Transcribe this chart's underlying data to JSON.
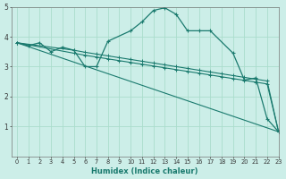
{
  "xlabel": "Humidex (Indice chaleur)",
  "background_color": "#cceee8",
  "line_color": "#1a7a6e",
  "grid_color": "#aaddcc",
  "xlim": [
    -0.5,
    23
  ],
  "ylim": [
    0,
    5
  ],
  "xticks": [
    0,
    1,
    2,
    3,
    4,
    5,
    6,
    7,
    8,
    9,
    10,
    11,
    12,
    13,
    14,
    15,
    16,
    17,
    18,
    19,
    20,
    21,
    22,
    23
  ],
  "yticks": [
    1,
    2,
    3,
    4,
    5
  ],
  "series_peak": {
    "x": [
      0,
      1,
      2,
      3,
      4,
      5,
      6,
      7,
      8,
      10,
      11,
      12,
      13,
      14,
      15,
      16,
      17,
      19,
      20,
      21,
      22,
      23
    ],
    "y": [
      3.8,
      3.7,
      3.8,
      3.5,
      3.65,
      3.55,
      3.0,
      3.0,
      3.85,
      4.2,
      4.5,
      4.88,
      4.97,
      4.75,
      4.2,
      4.2,
      4.2,
      3.45,
      2.55,
      2.62,
      1.25,
      0.82
    ]
  },
  "series_upper": {
    "x": [
      0,
      5,
      6,
      7,
      8,
      9,
      10,
      11,
      12,
      13,
      14,
      15,
      16,
      17,
      18,
      19,
      20,
      21,
      22,
      23
    ],
    "y": [
      3.8,
      3.55,
      3.48,
      3.42,
      3.36,
      3.3,
      3.24,
      3.18,
      3.12,
      3.06,
      3.0,
      2.94,
      2.88,
      2.82,
      2.76,
      2.7,
      2.64,
      2.58,
      2.52,
      0.82
    ]
  },
  "series_lower": {
    "x": [
      0,
      5,
      6,
      7,
      8,
      9,
      10,
      11,
      12,
      13,
      14,
      15,
      16,
      17,
      18,
      19,
      20,
      21,
      22,
      23
    ],
    "y": [
      3.8,
      3.45,
      3.38,
      3.32,
      3.26,
      3.2,
      3.14,
      3.08,
      3.02,
      2.96,
      2.9,
      2.84,
      2.78,
      2.72,
      2.66,
      2.6,
      2.54,
      2.48,
      2.42,
      0.82
    ]
  },
  "series_straight": {
    "x": [
      0,
      23
    ],
    "y": [
      3.8,
      0.82
    ]
  }
}
